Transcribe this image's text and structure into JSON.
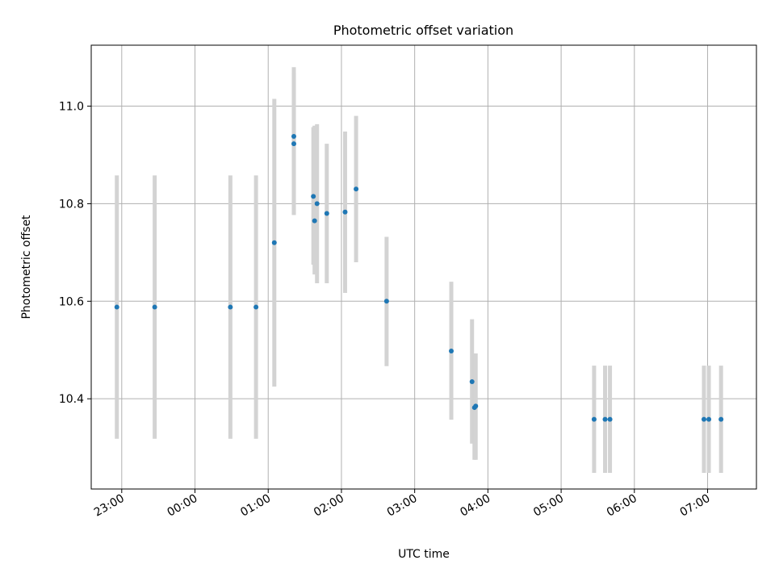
{
  "chart_data": {
    "type": "scatter",
    "title": "Photometric offset variation",
    "xlabel": "UTC time",
    "ylabel": "Photometric offset",
    "xlim": [
      "22:32",
      "07:37"
    ],
    "ylim": [
      10.215,
      11.125
    ],
    "grid": true,
    "x_ticks": [
      {
        "value": "22:57",
        "label": "23:00"
      },
      {
        "value": "23:57",
        "label": "00:00"
      },
      {
        "value": "00:57",
        "label": "01:00"
      },
      {
        "value": "01:57",
        "label": "02:00"
      },
      {
        "value": "02:57",
        "label": "03:00"
      },
      {
        "value": "03:57",
        "label": "04:00"
      },
      {
        "value": "04:57",
        "label": "05:00"
      },
      {
        "value": "05:57",
        "label": "06:00"
      },
      {
        "value": "06:57",
        "label": "07:00"
      }
    ],
    "y_ticks": [
      {
        "value": 10.4,
        "label": "10.4"
      },
      {
        "value": 10.6,
        "label": "10.6"
      },
      {
        "value": 10.8,
        "label": "10.8"
      },
      {
        "value": 11.0,
        "label": "11.0"
      }
    ],
    "points": [
      {
        "x": "22:53",
        "y": 10.588,
        "low": 10.318,
        "high": 10.858
      },
      {
        "x": "23:24",
        "y": 10.588,
        "low": 10.318,
        "high": 10.858
      },
      {
        "x": "00:26",
        "y": 10.588,
        "low": 10.318,
        "high": 10.858
      },
      {
        "x": "00:47",
        "y": 10.588,
        "low": 10.318,
        "high": 10.858
      },
      {
        "x": "01:02",
        "y": 10.72,
        "low": 10.425,
        "high": 11.015
      },
      {
        "x": "01:18",
        "y": 10.923,
        "low": 10.777,
        "high": 11.07
      },
      {
        "x": "01:18",
        "y": 10.938,
        "low": 10.777,
        "high": 11.08
      },
      {
        "x": "01:34",
        "y": 10.815,
        "low": 10.675,
        "high": 10.957
      },
      {
        "x": "01:35",
        "y": 10.765,
        "low": 10.655,
        "high": 10.96
      },
      {
        "x": "01:37",
        "y": 10.8,
        "low": 10.637,
        "high": 10.963
      },
      {
        "x": "01:45",
        "y": 10.78,
        "low": 10.637,
        "high": 10.923
      },
      {
        "x": "02:00",
        "y": 10.783,
        "low": 10.617,
        "high": 10.948
      },
      {
        "x": "02:09",
        "y": 10.83,
        "low": 10.68,
        "high": 10.98
      },
      {
        "x": "02:34",
        "y": 10.6,
        "low": 10.467,
        "high": 10.732
      },
      {
        "x": "03:27",
        "y": 10.498,
        "low": 10.357,
        "high": 10.64
      },
      {
        "x": "03:44",
        "y": 10.435,
        "low": 10.308,
        "high": 10.563
      },
      {
        "x": "03:46",
        "y": 10.382,
        "low": 10.275,
        "high": 10.493
      },
      {
        "x": "03:47",
        "y": 10.385,
        "low": 10.275,
        "high": 10.493
      },
      {
        "x": "05:24",
        "y": 10.358,
        "low": 10.248,
        "high": 10.468
      },
      {
        "x": "05:33",
        "y": 10.358,
        "low": 10.248,
        "high": 10.468
      },
      {
        "x": "05:37",
        "y": 10.358,
        "low": 10.248,
        "high": 10.468
      },
      {
        "x": "06:54",
        "y": 10.358,
        "low": 10.248,
        "high": 10.468
      },
      {
        "x": "06:58",
        "y": 10.358,
        "low": 10.248,
        "high": 10.468
      },
      {
        "x": "07:08",
        "y": 10.358,
        "low": 10.248,
        "high": 10.468
      }
    ],
    "colors": {
      "point": "#1f77b4",
      "errorbar": "#d3d3d3",
      "grid": "#b0b0b0"
    }
  }
}
